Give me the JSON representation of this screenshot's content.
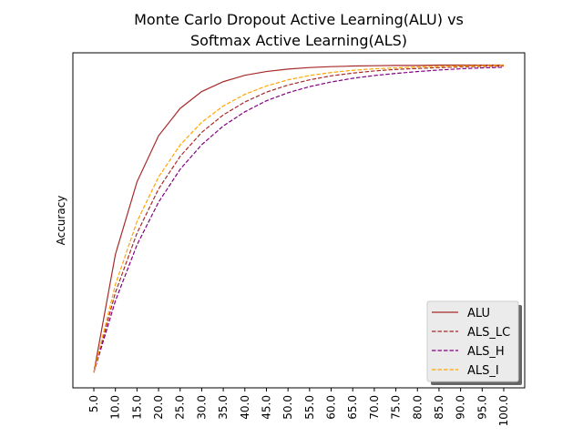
{
  "chart_data": {
    "type": "line",
    "title_lines": [
      "Monte Carlo Dropout Active Learning(ALU) vs",
      "Softmax Active Learning(ALS)"
    ],
    "xlabel": "",
    "ylabel": "Accuracy",
    "x": [
      "5.0",
      "10.0",
      "15.0",
      "20.0",
      "25.0",
      "30.0",
      "35.0",
      "40.0",
      "45.0",
      "50.0",
      "55.0",
      "60.0",
      "65.0",
      "70.0",
      "75.0",
      "80.0",
      "85.0",
      "90.0",
      "95.0",
      "100.0"
    ],
    "ylim": [
      -0.05,
      1.04
    ],
    "grid": false,
    "legend_position": "lower-right",
    "series": [
      {
        "name": "ALU",
        "color": "#a52a2a",
        "style": "solid",
        "values": [
          0.0,
          0.384,
          0.62,
          0.77,
          0.859,
          0.914,
          0.946,
          0.967,
          0.979,
          0.987,
          0.992,
          0.995,
          0.997,
          0.998,
          0.999,
          0.999,
          1.0,
          1.0,
          1.0,
          1.0
        ]
      },
      {
        "name": "ALS_LC",
        "color": "#a52a2a",
        "style": "dashed",
        "values": [
          0.0,
          0.26,
          0.453,
          0.597,
          0.703,
          0.781,
          0.838,
          0.88,
          0.912,
          0.935,
          0.952,
          0.965,
          0.974,
          0.981,
          0.986,
          0.989,
          0.992,
          0.994,
          0.996,
          0.997
        ]
      },
      {
        "name": "ALS_H",
        "color": "#800080",
        "style": "dashed",
        "values": [
          0.0,
          0.233,
          0.415,
          0.554,
          0.661,
          0.741,
          0.802,
          0.848,
          0.884,
          0.91,
          0.93,
          0.945,
          0.957,
          0.966,
          0.973,
          0.979,
          0.984,
          0.988,
          0.991,
          0.993
        ]
      },
      {
        "name": "ALS_I",
        "color": "#ffa500",
        "style": "dashed",
        "values": [
          0.0,
          0.286,
          0.491,
          0.636,
          0.74,
          0.814,
          0.867,
          0.905,
          0.932,
          0.952,
          0.966,
          0.976,
          0.983,
          0.988,
          0.991,
          0.994,
          0.996,
          0.997,
          0.998,
          0.999
        ]
      }
    ]
  }
}
